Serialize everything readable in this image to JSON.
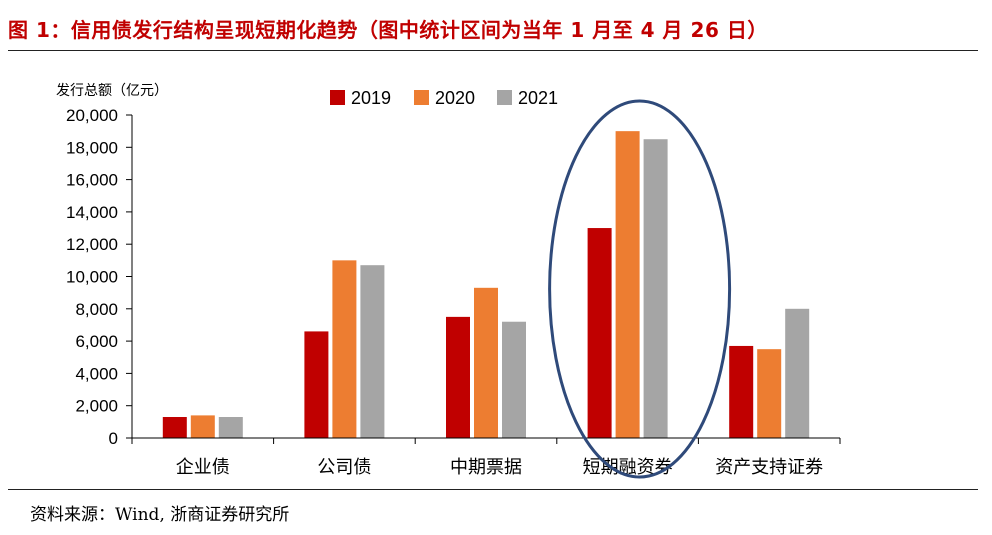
{
  "header": {
    "title": "图 1：信用债发行结构呈现短期化趋势（图中统计区间为当年 1 月至 4 月 26 日）"
  },
  "footer": {
    "source": "资料来源：Wind, 浙商证券研究所"
  },
  "chart_data": {
    "type": "bar",
    "title": "",
    "ylabel": "发行总额（亿元）",
    "xlabel": "",
    "categories": [
      "企业债",
      "公司债",
      "中期票据",
      "短期融资券",
      "资产支持证券"
    ],
    "series": [
      {
        "name": "2019",
        "values": [
          1300,
          6600,
          7500,
          13000,
          5700
        ],
        "color": "#c00000"
      },
      {
        "name": "2020",
        "values": [
          1400,
          11000,
          9300,
          19000,
          5500
        ],
        "color": "#ed7d31"
      },
      {
        "name": "2021",
        "values": [
          1300,
          10700,
          7200,
          18500,
          8000
        ],
        "color": "#a5a5a5"
      }
    ],
    "ylim": [
      0,
      20000
    ],
    "yticks": [
      "0",
      "2,000",
      "4,000",
      "6,000",
      "8,000",
      "10,000",
      "12,000",
      "14,000",
      "16,000",
      "18,000",
      "20,000"
    ],
    "ytick_values": [
      0,
      2000,
      4000,
      6000,
      8000,
      10000,
      12000,
      14000,
      16000,
      18000,
      20000
    ],
    "grid": false,
    "legend_position": "top-center",
    "highlight": {
      "category": "短期融资券",
      "shape": "ellipse",
      "color": "#2f4a7a"
    }
  }
}
